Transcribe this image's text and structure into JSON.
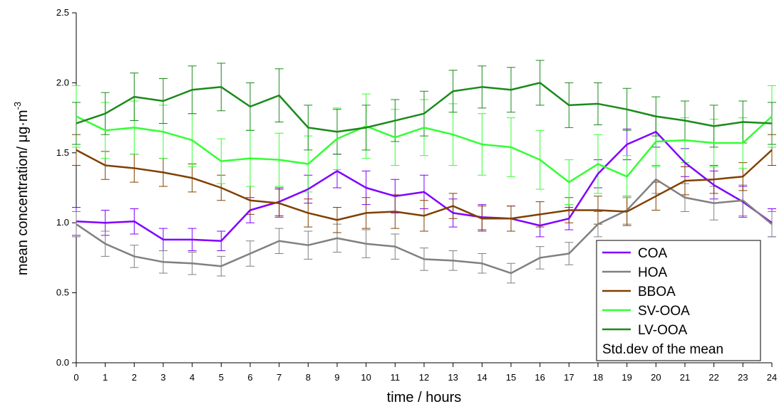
{
  "chart_data": {
    "type": "line",
    "xlabel": "time / hours",
    "ylabel": "mean concentration/ μg·m",
    "ylabel_superscript": "-3",
    "legend_note": "Std.dev of the mean",
    "legend": "lower right",
    "x": [
      0,
      1,
      2,
      3,
      4,
      5,
      6,
      7,
      8,
      9,
      10,
      11,
      12,
      13,
      14,
      15,
      16,
      17,
      18,
      19,
      20,
      21,
      22,
      23,
      24
    ],
    "xlim": [
      0,
      24
    ],
    "xticks": [
      0,
      1,
      2,
      3,
      4,
      5,
      6,
      7,
      8,
      9,
      10,
      11,
      12,
      13,
      14,
      15,
      16,
      17,
      18,
      19,
      20,
      21,
      22,
      23,
      24
    ],
    "ylim": [
      0,
      2.5
    ],
    "yticks": [
      {
        "value": 0,
        "label": "0.0"
      },
      0.5,
      {
        "value": 1,
        "label": "1.0"
      },
      1.5,
      {
        "value": 2,
        "label": "2.0"
      },
      2.5
    ],
    "series": [
      {
        "name": "COA",
        "color": "#8000ff",
        "values": [
          1.01,
          1.0,
          1.01,
          0.88,
          0.88,
          0.87,
          1.09,
          1.15,
          1.24,
          1.37,
          1.25,
          1.19,
          1.22,
          1.07,
          1.04,
          1.03,
          0.98,
          1.03,
          1.35,
          1.56,
          1.65,
          1.43,
          1.27,
          1.15,
          1.0
        ],
        "errors": [
          0.1,
          0.09,
          0.09,
          0.08,
          0.08,
          0.07,
          0.09,
          0.1,
          0.1,
          0.12,
          0.12,
          0.12,
          0.12,
          0.1,
          0.09,
          0.09,
          0.08,
          0.08,
          0.1,
          0.11,
          0.11,
          0.1,
          0.1,
          0.11,
          0.1
        ]
      },
      {
        "name": "HOA",
        "color": "#808080",
        "values": [
          0.99,
          0.85,
          0.76,
          0.72,
          0.71,
          0.69,
          0.78,
          0.87,
          0.84,
          0.89,
          0.85,
          0.83,
          0.74,
          0.73,
          0.71,
          0.64,
          0.75,
          0.78,
          0.99,
          1.09,
          1.31,
          1.18,
          1.14,
          1.16,
          0.99
        ],
        "errors": [
          0.09,
          0.09,
          0.08,
          0.08,
          0.08,
          0.07,
          0.09,
          0.09,
          0.1,
          0.1,
          0.1,
          0.09,
          0.08,
          0.07,
          0.07,
          0.07,
          0.08,
          0.08,
          0.09,
          0.1,
          0.1,
          0.1,
          0.12,
          0.11,
          0.09
        ]
      },
      {
        "name": "BBOA",
        "color": "#804000",
        "values": [
          1.52,
          1.41,
          1.39,
          1.36,
          1.32,
          1.25,
          1.16,
          1.14,
          1.07,
          1.02,
          1.07,
          1.08,
          1.05,
          1.12,
          1.03,
          1.03,
          1.06,
          1.09,
          1.09,
          1.08,
          1.19,
          1.3,
          1.31,
          1.33,
          1.52
        ],
        "errors": [
          0.11,
          0.1,
          0.1,
          0.1,
          0.1,
          0.09,
          0.1,
          0.1,
          0.1,
          0.09,
          0.11,
          0.12,
          0.11,
          0.09,
          0.09,
          0.09,
          0.09,
          0.09,
          0.1,
          0.1,
          0.1,
          0.1,
          0.1,
          0.1,
          0.11
        ]
      },
      {
        "name": "SV-OOA",
        "color": "#33ff33",
        "values": [
          1.76,
          1.66,
          1.68,
          1.65,
          1.59,
          1.44,
          1.46,
          1.45,
          1.42,
          1.6,
          1.69,
          1.61,
          1.68,
          1.63,
          1.56,
          1.54,
          1.45,
          1.29,
          1.42,
          1.33,
          1.58,
          1.59,
          1.57,
          1.57,
          1.76
        ],
        "errors": [
          0.22,
          0.2,
          0.19,
          0.19,
          0.19,
          0.16,
          0.2,
          0.19,
          0.2,
          0.22,
          0.23,
          0.2,
          0.2,
          0.22,
          0.22,
          0.21,
          0.21,
          0.16,
          0.21,
          0.15,
          0.18,
          0.16,
          0.17,
          0.18,
          0.22
        ]
      },
      {
        "name": "LV-OOA",
        "color": "#1a8a1a",
        "values": [
          1.71,
          1.78,
          1.9,
          1.87,
          1.95,
          1.97,
          1.83,
          1.91,
          1.68,
          1.65,
          1.68,
          1.73,
          1.78,
          1.94,
          1.97,
          1.95,
          2.0,
          1.84,
          1.85,
          1.81,
          1.76,
          1.73,
          1.69,
          1.72,
          1.71
        ],
        "errors": [
          0.15,
          0.15,
          0.17,
          0.16,
          0.17,
          0.17,
          0.17,
          0.19,
          0.16,
          0.16,
          0.16,
          0.15,
          0.16,
          0.15,
          0.15,
          0.16,
          0.16,
          0.16,
          0.15,
          0.15,
          0.14,
          0.14,
          0.15,
          0.15,
          0.15
        ]
      }
    ]
  }
}
